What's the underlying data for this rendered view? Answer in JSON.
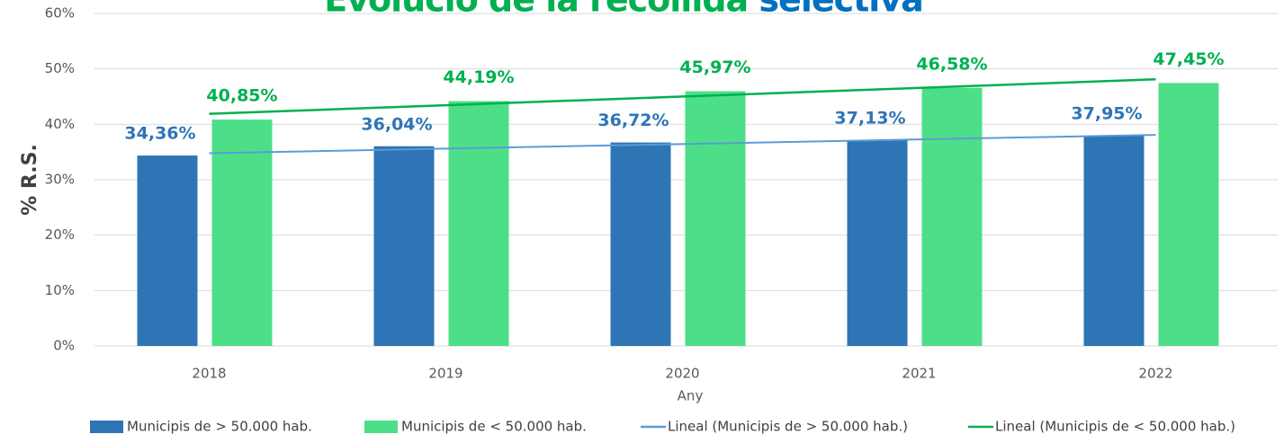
{
  "chart_data": {
    "type": "bar",
    "title": "Evolució de la recollida selectiva",
    "x_label": "Any",
    "y_label": "% R.S.",
    "categories": [
      "2018",
      "2019",
      "2020",
      "2021",
      "2022"
    ],
    "series": [
      {
        "name": "Municipis de > 50.000 hab.",
        "color": "#2e75b6",
        "label_color": "#2e75b6",
        "values": [
          34.36,
          36.04,
          36.72,
          37.13,
          37.95
        ],
        "value_labels": [
          "34,36%",
          "36,04%",
          "36,72%",
          "37,13%",
          "37,95%"
        ],
        "trendline": {
          "name": "Lineal (Municipis de > 50.000 hab.)",
          "color": "#5b9bd5"
        }
      },
      {
        "name": "Municipis de < 50.000 hab.",
        "color": "#4cdf88",
        "label_color": "#00b050",
        "values": [
          40.85,
          44.19,
          45.97,
          46.58,
          47.45
        ],
        "value_labels": [
          "40,85%",
          "44,19%",
          "45,97%",
          "46,58%",
          "47,45%"
        ],
        "trendline": {
          "name": "Lineal (Municipis de < 50.000 hab.)",
          "color": "#00b050"
        }
      }
    ],
    "ylim": [
      0,
      60
    ],
    "yticks": [
      {
        "value": 0,
        "label": "0%"
      },
      {
        "value": 10,
        "label": "10%"
      },
      {
        "value": 20,
        "label": "20%"
      },
      {
        "value": 30,
        "label": "30%"
      },
      {
        "value": 40,
        "label": "40%"
      },
      {
        "value": 50,
        "label": "50%"
      },
      {
        "value": 60,
        "label": "60%"
      }
    ],
    "grid": true,
    "legend": "bottom"
  }
}
